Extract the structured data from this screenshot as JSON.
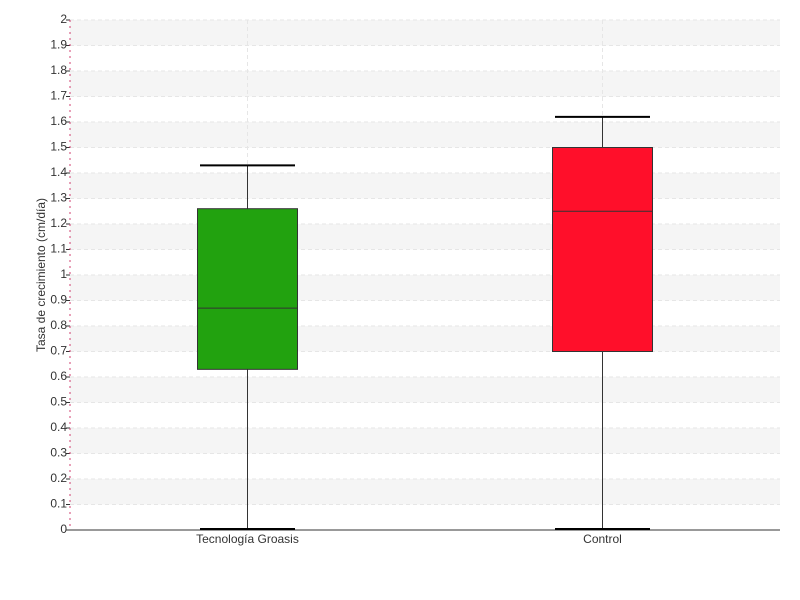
{
  "chart_data": {
    "type": "box",
    "ylabel": "Tasa de crecimiento (cm/día)",
    "categories": [
      "Tecnología Groasis",
      "Control"
    ],
    "boxes": [
      {
        "min": 0,
        "q1": 0.63,
        "median": 0.87,
        "q3": 1.26,
        "max": 1.43,
        "color": "#22a20f"
      },
      {
        "min": 0,
        "q1": 0.7,
        "median": 1.25,
        "q3": 1.5,
        "max": 1.62,
        "color": "#ff0f2a"
      }
    ],
    "ylim": [
      0,
      2
    ],
    "yticks": [
      0,
      0.1,
      0.2,
      0.3,
      0.4,
      0.5,
      0.6,
      0.7,
      0.8,
      0.9,
      1,
      1.1,
      1.2,
      1.3,
      1.4,
      1.5,
      1.6,
      1.7,
      1.8,
      1.9,
      2
    ],
    "grid": true
  }
}
